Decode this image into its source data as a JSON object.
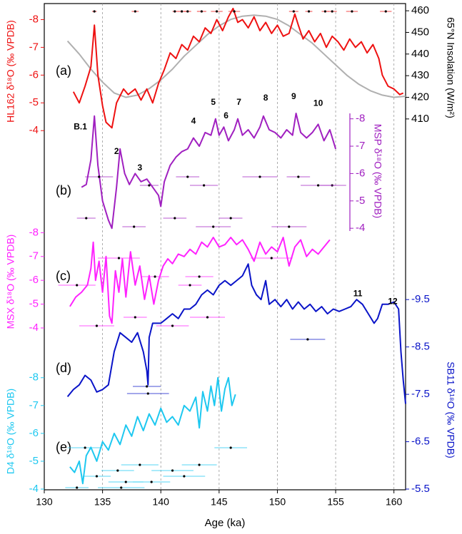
{
  "chart_data": {
    "type": "line",
    "xlabel": "Age (ka)",
    "xlim": [
      130,
      161
    ],
    "xticks": [
      130,
      135,
      140,
      145,
      150,
      155,
      160
    ],
    "grid": true,
    "series": [
      {
        "name": "HL162 δ¹⁸O (‰ VPDB)",
        "panel": "(a)",
        "color": "#ee1111",
        "side": "left",
        "ylim": [
          -3.8,
          -8.5
        ],
        "yticks": [
          -8,
          -7,
          -6,
          -5,
          -4
        ],
        "x": [
          132.5,
          133.0,
          133.5,
          134.0,
          134.3,
          134.6,
          135.0,
          135.3,
          135.8,
          136.2,
          136.8,
          137.2,
          137.8,
          138.3,
          138.8,
          139.3,
          139.8,
          140.3,
          140.8,
          141.3,
          141.8,
          142.3,
          142.8,
          143.3,
          143.8,
          144.3,
          144.8,
          145.3,
          145.8,
          146.2,
          146.6,
          147.0,
          147.5,
          148.0,
          148.5,
          149.0,
          149.5,
          150.0,
          150.5,
          151.0,
          151.5,
          151.8,
          152.2,
          152.7,
          153.2,
          153.7,
          154.2,
          154.7,
          155.2,
          155.7,
          156.2,
          156.7,
          157.2,
          157.7,
          158.2,
          158.7,
          159.0,
          159.5,
          160.0,
          160.5,
          160.8
        ],
        "values": [
          -5.4,
          -5.0,
          -5.6,
          -6.3,
          -7.8,
          -6.0,
          -4.9,
          -4.3,
          -4.1,
          -5.0,
          -5.5,
          -5.3,
          -5.5,
          -5.1,
          -5.5,
          -5.0,
          -5.7,
          -6.2,
          -6.8,
          -6.6,
          -7.1,
          -6.9,
          -7.4,
          -7.2,
          -7.7,
          -7.5,
          -8.0,
          -7.6,
          -8.1,
          -8.4,
          -7.9,
          -8.0,
          -7.7,
          -8.1,
          -7.6,
          -7.9,
          -7.5,
          -7.8,
          -7.4,
          -7.5,
          -8.2,
          -7.8,
          -7.3,
          -7.6,
          -7.2,
          -7.5,
          -7.0,
          -7.4,
          -7.2,
          -6.9,
          -7.3,
          -7.0,
          -7.2,
          -6.8,
          -7.1,
          -6.6,
          -6.0,
          -5.6,
          -5.5,
          -5.3,
          -5.35
        ],
        "dates": {
          "ages": [
            134.3,
            137.8,
            141.2,
            141.8,
            142.3,
            143.5,
            144.8,
            146.3,
            151.4,
            152.7,
            154.1,
            154.7,
            156.4,
            159.3
          ],
          "errors": [
            0.2,
            0.3,
            0.2,
            0.4,
            0.3,
            0.4,
            0.5,
            0.5,
            0.4,
            0.3,
            0.3,
            0.4,
            0.5,
            0.5
          ]
        }
      },
      {
        "name": "65°N Insolation (W/m²)",
        "color": "#b0b0b0",
        "side": "right",
        "ylim": [
          405,
          463
        ],
        "yticks": [
          410,
          420,
          430,
          440,
          450,
          460
        ],
        "x": [
          132,
          133,
          134,
          135,
          136,
          137,
          138,
          139,
          140,
          141,
          142,
          143,
          144,
          145,
          146,
          147,
          148,
          149,
          150,
          151,
          152,
          153,
          154,
          155,
          156,
          157,
          158,
          159,
          160,
          161
        ],
        "values": [
          446,
          440,
          433,
          427,
          422,
          420,
          421,
          424,
          428,
          433,
          439,
          444,
          449,
          453,
          456,
          457.5,
          458,
          457.5,
          456,
          453,
          449,
          445,
          440,
          435,
          430,
          426,
          423,
          421,
          420,
          420.5
        ]
      },
      {
        "name": "MSP δ¹⁸O (‰ VPDB)",
        "panel": "(b)",
        "color": "#a020c0",
        "side": "right",
        "ylim": [
          -3.9,
          -8.2
        ],
        "yticks": [
          -8,
          -7,
          -6,
          -5,
          -4
        ],
        "x": [
          133.2,
          133.6,
          134.0,
          134.3,
          134.6,
          135.0,
          135.5,
          135.8,
          136.2,
          136.5,
          136.9,
          137.3,
          137.8,
          138.3,
          138.8,
          139.3,
          139.8,
          140.0,
          140.3,
          140.8,
          141.3,
          141.8,
          142.3,
          142.8,
          143.3,
          143.8,
          144.3,
          144.7,
          145.0,
          145.4,
          145.8,
          146.3,
          146.6,
          147.0,
          147.5,
          148.0,
          148.5,
          148.8,
          149.3,
          149.8,
          150.3,
          150.8,
          151.3,
          151.6,
          152.0,
          152.5,
          153.0,
          153.5,
          154.0,
          154.5,
          155.0
        ],
        "values": [
          -5.5,
          -5.6,
          -6.5,
          -8.1,
          -6.3,
          -5.0,
          -4.3,
          -4.0,
          -5.5,
          -6.9,
          -6.0,
          -5.6,
          -6.0,
          -5.7,
          -5.8,
          -5.5,
          -5.2,
          -4.8,
          -5.7,
          -6.3,
          -6.6,
          -6.8,
          -6.9,
          -7.3,
          -7.0,
          -7.5,
          -7.4,
          -8.0,
          -7.4,
          -7.7,
          -7.2,
          -7.6,
          -8.0,
          -7.4,
          -7.6,
          -7.3,
          -7.7,
          -8.1,
          -7.6,
          -7.5,
          -7.3,
          -7.6,
          -7.4,
          -8.2,
          -7.5,
          -7.3,
          -7.5,
          -7.8,
          -7.2,
          -7.6,
          -6.9
        ],
        "annotations": [
          {
            "text": "B.1",
            "x": 133.1,
            "y": -7.7
          },
          {
            "text": "2",
            "x": 136.2,
            "y": -6.8
          },
          {
            "text": "3",
            "x": 138.2,
            "y": -6.2
          },
          {
            "text": "4",
            "x": 142.8,
            "y": -7.9
          },
          {
            "text": "5",
            "x": 144.5,
            "y": -8.6
          },
          {
            "text": "6",
            "x": 145.6,
            "y": -8.1
          },
          {
            "text": "7",
            "x": 146.7,
            "y": -8.6
          },
          {
            "text": "8",
            "x": 149.0,
            "y": -8.75
          },
          {
            "text": "9",
            "x": 151.4,
            "y": -8.8
          },
          {
            "text": "10",
            "x": 153.5,
            "y": -8.55
          }
        ],
        "dates": {
          "ages": [
            142.3,
            143.7,
            146.0,
            151.0,
            151.8,
            154.7,
            141.2,
            144.5,
            148.5,
            153.5,
            133.6,
            137.7,
            134.7,
            139.0
          ],
          "errors": [
            1.0,
            1.2,
            1.0,
            1.5,
            1.0,
            1.2,
            1.0,
            1.5,
            1.5,
            1.5,
            0.8,
            1.0,
            1.2,
            0.8
          ]
        }
      },
      {
        "name": "MSX δ¹⁸O (‰ VPDB)",
        "panel": "(c)",
        "color": "#ff22ff",
        "side": "left",
        "ylim": [
          -3.85,
          -8.25
        ],
        "yticks": [
          -8,
          -7,
          -6,
          -5,
          -4
        ],
        "x": [
          132.2,
          132.7,
          133.2,
          133.7,
          134.0,
          134.2,
          134.4,
          134.7,
          135.0,
          135.3,
          135.6,
          135.8,
          136.1,
          136.4,
          136.7,
          137.0,
          137.4,
          137.8,
          138.2,
          138.6,
          139.0,
          139.4,
          139.8,
          140.2,
          140.6,
          141.0,
          141.5,
          142.0,
          142.5,
          143.0,
          143.5,
          144.0,
          144.5,
          145.0,
          145.5,
          146.0,
          146.5,
          147.0,
          147.5,
          148.0,
          148.5,
          149.0,
          149.5,
          150.0,
          150.5,
          151.0,
          151.5,
          152.0,
          152.5,
          153.0,
          153.5,
          154.0,
          154.5
        ],
        "values": [
          -4.9,
          -5.3,
          -5.5,
          -5.8,
          -6.5,
          -7.6,
          -6.0,
          -6.8,
          -5.5,
          -7.0,
          -4.5,
          -4.2,
          -6.4,
          -5.5,
          -6.9,
          -5.3,
          -7.2,
          -5.8,
          -6.6,
          -5.2,
          -6.2,
          -5.0,
          -6.0,
          -6.6,
          -6.9,
          -6.7,
          -7.1,
          -7.0,
          -7.3,
          -7.1,
          -7.6,
          -7.4,
          -7.8,
          -7.4,
          -7.5,
          -7.8,
          -7.5,
          -7.7,
          -7.3,
          -6.8,
          -7.6,
          -7.1,
          -7.4,
          -7.2,
          -7.8,
          -6.6,
          -7.4,
          -7.7,
          -7.0,
          -7.3,
          -7.1,
          -7.4,
          -7.7
        ],
        "dates": {
          "ages": [
            149.5,
            143.3,
            142.5,
            144.0,
            134.5,
            136.4,
            139.5,
            132.8,
            137.8,
            141.0
          ],
          "errors": [
            1.8,
            1.2,
            1.0,
            1.5,
            1.5,
            1.8,
            1.2,
            1.6,
            1.0,
            1.4
          ]
        }
      },
      {
        "name": "SB11 δ¹⁸O (‰ VPDB)",
        "panel": "(d)",
        "color": "#0a14c8",
        "side": "right",
        "ylim": [
          -5.5,
          -10.3
        ],
        "yticks": [
          -9.5,
          -8.5,
          -7.5,
          -6.5,
          -5.5
        ],
        "x": [
          132.0,
          132.5,
          133.0,
          133.5,
          134.0,
          134.5,
          135.0,
          135.5,
          136.0,
          136.5,
          137.0,
          137.5,
          138.0,
          138.5,
          138.8,
          138.9,
          139.0,
          139.3,
          140.0,
          140.5,
          141.0,
          141.5,
          142.0,
          142.5,
          143.0,
          143.5,
          144.0,
          144.5,
          145.0,
          145.5,
          146.0,
          146.5,
          147.0,
          147.5,
          147.8,
          148.2,
          148.6,
          149.0,
          149.3,
          149.8,
          150.3,
          150.8,
          151.3,
          151.8,
          152.3,
          152.8,
          153.3,
          153.8,
          154.3,
          154.8,
          155.3,
          155.8,
          156.3,
          156.8,
          157.3,
          157.8,
          158.3,
          158.6,
          159.0,
          159.5,
          160.0,
          160.4,
          160.6,
          160.8,
          161.0
        ],
        "values": [
          -7.45,
          -7.6,
          -7.7,
          -7.9,
          -7.8,
          -7.55,
          -7.6,
          -7.7,
          -8.4,
          -8.8,
          -8.7,
          -8.6,
          -8.8,
          -8.4,
          -8.0,
          -7.7,
          -8.7,
          -9.0,
          -9.0,
          -9.1,
          -9.2,
          -9.1,
          -9.3,
          -9.3,
          -9.4,
          -9.6,
          -9.7,
          -9.6,
          -9.8,
          -9.9,
          -9.8,
          -9.9,
          -10.0,
          -10.25,
          -9.8,
          -9.6,
          -9.5,
          -9.9,
          -9.4,
          -9.5,
          -9.35,
          -9.5,
          -9.3,
          -9.45,
          -9.3,
          -9.4,
          -9.25,
          -9.35,
          -9.2,
          -9.3,
          -9.25,
          -9.3,
          -9.35,
          -9.5,
          -9.4,
          -9.2,
          -9.0,
          -9.1,
          -9.4,
          -9.4,
          -9.45,
          -9.3,
          -8.4,
          -7.8,
          -7.3
        ],
        "annotations": [
          {
            "text": "11",
            "x": 156.9,
            "y": -9.62
          },
          {
            "text": "12",
            "x": 159.9,
            "y": -9.45
          }
        ],
        "dates": {
          "ages": [
            152.6,
            138.8,
            138.9
          ],
          "errors": [
            1.5,
            1.2,
            1.8
          ]
        }
      },
      {
        "name": "D4 δ¹⁸O (‰ VPDB)",
        "panel": "(e)",
        "color": "#1ec8f0",
        "side": "left",
        "ylim": [
          -4,
          -8.25
        ],
        "yticks": [
          -8,
          -7,
          -6,
          -5,
          -4
        ],
        "x": [
          132.2,
          132.6,
          133.0,
          133.3,
          133.6,
          134.0,
          134.5,
          135.0,
          135.5,
          136.0,
          136.5,
          137.0,
          137.5,
          138.0,
          138.5,
          139.0,
          139.5,
          140.0,
          140.5,
          141.0,
          141.5,
          142.0,
          142.5,
          143.0,
          143.3,
          143.6,
          144.0,
          144.3,
          144.6,
          144.9,
          145.2,
          145.5,
          145.8,
          146.1,
          146.4
        ],
        "values": [
          -4.8,
          -4.6,
          -5.0,
          -4.2,
          -5.2,
          -5.5,
          -5.0,
          -5.7,
          -5.4,
          -6.0,
          -5.6,
          -6.3,
          -5.9,
          -6.6,
          -6.1,
          -6.7,
          -6.3,
          -6.9,
          -6.4,
          -6.6,
          -6.3,
          -7.0,
          -6.8,
          -7.3,
          -6.2,
          -7.5,
          -6.8,
          -7.7,
          -7.0,
          -8.0,
          -6.8,
          -7.6,
          -8.0,
          -7.0,
          -7.4
        ],
        "dates": {
          "ages": [
            146.0,
            143.3,
            136.3,
            142.0,
            137.0,
            136.6,
            133.5,
            138.2,
            141.0,
            134.5,
            139.2,
            132.8
          ],
          "errors": [
            1.4,
            1.5,
            1.4,
            1.8,
            1.5,
            2.0,
            1.5,
            1.6,
            1.8,
            1.2,
            1.6,
            1.0
          ]
        }
      }
    ]
  }
}
